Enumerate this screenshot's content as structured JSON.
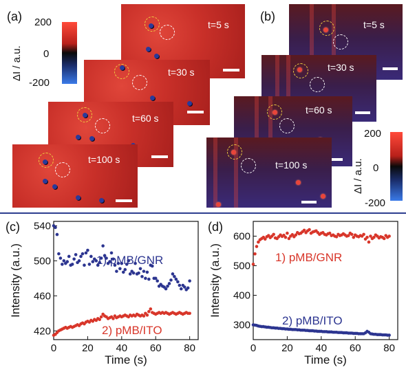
{
  "panels": {
    "a": "(a)",
    "b": "(b)",
    "c": "(c)",
    "d": "(d)"
  },
  "times": [
    "t=5 s",
    "t=30 s",
    "t=60 s",
    "t=100 s"
  ],
  "colorbar": {
    "title": "ΔI / a.u.",
    "ticks": [
      "200",
      "0",
      "-200"
    ],
    "colors": [
      "#ff4a3a",
      "#0a0a0a",
      "#3a7ae8"
    ]
  },
  "colors": {
    "red": "#d8362a",
    "blue": "#2c3590"
  },
  "chart_data": [
    {
      "type": "scatter",
      "panel": "(c)",
      "xlabel": "Time (s)",
      "ylabel": "Intensity (a.u.)",
      "xlim": [
        0,
        85
      ],
      "ylim": [
        410,
        545
      ],
      "xticks": [
        0,
        20,
        40,
        60,
        80
      ],
      "yticks": [
        420,
        460,
        500,
        540
      ],
      "series": [
        {
          "name": "1) pMB/GNR",
          "color": "#2c3590",
          "x": [
            0,
            1,
            2,
            3,
            4,
            5,
            6,
            7,
            8,
            9,
            10,
            11,
            12,
            13,
            14,
            15,
            16,
            17,
            18,
            19,
            20,
            21,
            22,
            23,
            24,
            25,
            26,
            27,
            28,
            29,
            30,
            31,
            32,
            33,
            34,
            35,
            36,
            37,
            38,
            39,
            40,
            41,
            42,
            43,
            44,
            45,
            46,
            47,
            48,
            49,
            50,
            51,
            52,
            53,
            54,
            55,
            56,
            57,
            58,
            59,
            60,
            61,
            62,
            63,
            64,
            65,
            66,
            67,
            68,
            69,
            70,
            71,
            72,
            73,
            74,
            75,
            76,
            77,
            78,
            79,
            80
          ],
          "y": [
            540,
            538,
            530,
            508,
            503,
            496,
            500,
            497,
            499,
            505,
            495,
            496,
            502,
            507,
            498,
            500,
            505,
            508,
            495,
            509,
            512,
            496,
            505,
            499,
            502,
            500,
            495,
            498,
            503,
            517,
            506,
            503,
            497,
            499,
            509,
            502,
            495,
            488,
            497,
            491,
            497,
            487,
            490,
            496,
            500,
            485,
            488,
            486,
            497,
            485,
            486,
            491,
            482,
            488,
            480,
            487,
            479,
            495,
            494,
            480,
            480,
            477,
            471,
            473,
            471,
            470,
            468,
            471,
            474,
            478,
            485,
            482,
            479,
            476,
            472,
            468,
            472,
            470,
            467,
            469,
            477
          ]
        },
        {
          "name": "2) pMB/ITO",
          "color": "#d8362a",
          "x": [
            0,
            1,
            2,
            3,
            4,
            5,
            6,
            7,
            8,
            9,
            10,
            11,
            12,
            13,
            14,
            15,
            16,
            17,
            18,
            19,
            20,
            21,
            22,
            23,
            24,
            25,
            26,
            27,
            28,
            29,
            30,
            31,
            32,
            33,
            34,
            35,
            36,
            37,
            38,
            39,
            40,
            41,
            42,
            43,
            44,
            45,
            46,
            47,
            48,
            49,
            50,
            51,
            52,
            53,
            54,
            55,
            56,
            57,
            58,
            59,
            60,
            61,
            62,
            63,
            64,
            65,
            66,
            67,
            68,
            69,
            70,
            71,
            72,
            73,
            74,
            75,
            76,
            77,
            78,
            79,
            80
          ],
          "y": [
            415,
            416,
            418,
            420,
            421,
            422,
            423,
            424,
            423,
            424,
            425,
            424,
            425,
            426,
            427,
            426,
            428,
            429,
            428,
            430,
            431,
            430,
            432,
            431,
            433,
            432,
            434,
            433,
            436,
            439,
            437,
            436,
            434,
            435,
            436,
            434,
            437,
            435,
            436,
            437,
            436,
            437,
            438,
            437,
            436,
            438,
            437,
            438,
            437,
            439,
            438,
            437,
            438,
            437,
            440,
            438,
            442,
            445,
            441,
            440,
            439,
            440,
            441,
            440,
            441,
            440,
            441,
            440,
            439,
            440,
            441,
            440,
            439,
            440,
            441,
            440,
            439,
            440,
            441,
            440,
            440
          ]
        }
      ]
    },
    {
      "type": "scatter",
      "panel": "(d)",
      "xlabel": "Time (s)",
      "ylabel": "Intensity (a.u.)",
      "xlim": [
        0,
        85
      ],
      "ylim": [
        250,
        650
      ],
      "xticks": [
        0,
        20,
        40,
        60,
        80
      ],
      "yticks": [
        300,
        400,
        500,
        600
      ],
      "series": [
        {
          "name": "1) pMB/GNR",
          "color": "#d8362a",
          "x": [
            0,
            1,
            2,
            3,
            4,
            5,
            6,
            7,
            8,
            9,
            10,
            11,
            12,
            13,
            14,
            15,
            16,
            17,
            18,
            19,
            20,
            21,
            22,
            23,
            24,
            25,
            26,
            27,
            28,
            29,
            30,
            31,
            32,
            33,
            34,
            35,
            36,
            37,
            38,
            39,
            40,
            41,
            42,
            43,
            44,
            45,
            46,
            47,
            48,
            49,
            50,
            51,
            52,
            53,
            54,
            55,
            56,
            57,
            58,
            59,
            60,
            61,
            62,
            63,
            64,
            65,
            66,
            67,
            68,
            69,
            70,
            71,
            72,
            73,
            74,
            75,
            76,
            77,
            78,
            79,
            80
          ],
          "y": [
            505,
            540,
            565,
            580,
            588,
            592,
            596,
            590,
            598,
            602,
            595,
            600,
            606,
            594,
            592,
            598,
            604,
            599,
            603,
            596,
            610,
            592,
            600,
            605,
            598,
            604,
            612,
            608,
            610,
            615,
            620,
            612,
            618,
            622,
            610,
            614,
            616,
            618,
            612,
            606,
            610,
            612,
            606,
            604,
            608,
            610,
            602,
            604,
            600,
            598,
            606,
            602,
            604,
            608,
            604,
            600,
            602,
            610,
            606,
            596,
            604,
            600,
            598,
            602,
            600,
            606,
            590,
            596,
            580,
            600,
            592,
            596,
            604,
            600,
            594,
            598,
            596,
            592,
            602,
            596,
            600
          ]
        },
        {
          "name": "2) pMB/ITO",
          "color": "#2c3590",
          "x": [
            0,
            1,
            2,
            3,
            4,
            5,
            6,
            7,
            8,
            9,
            10,
            11,
            12,
            13,
            14,
            15,
            16,
            17,
            18,
            19,
            20,
            21,
            22,
            23,
            24,
            25,
            26,
            27,
            28,
            29,
            30,
            31,
            32,
            33,
            34,
            35,
            36,
            37,
            38,
            39,
            40,
            41,
            42,
            43,
            44,
            45,
            46,
            47,
            48,
            49,
            50,
            51,
            52,
            53,
            54,
            55,
            56,
            57,
            58,
            59,
            60,
            61,
            62,
            63,
            64,
            65,
            66,
            67,
            68,
            69,
            70,
            71,
            72,
            73,
            74,
            75,
            76,
            77,
            78,
            79,
            80
          ],
          "y": [
            300,
            299,
            298,
            296,
            295,
            294,
            294,
            293,
            292,
            292,
            291,
            290,
            290,
            289,
            289,
            288,
            288,
            287,
            287,
            286,
            286,
            285,
            285,
            284,
            284,
            284,
            283,
            283,
            282,
            282,
            282,
            281,
            281,
            280,
            280,
            280,
            279,
            279,
            278,
            278,
            278,
            277,
            277,
            277,
            276,
            276,
            276,
            275,
            275,
            275,
            274,
            274,
            274,
            273,
            273,
            273,
            272,
            272,
            272,
            271,
            271,
            271,
            270,
            270,
            270,
            270,
            273,
            278,
            275,
            270,
            269,
            268,
            268,
            267,
            267,
            267,
            266,
            266,
            266,
            265,
            265
          ]
        }
      ]
    }
  ]
}
